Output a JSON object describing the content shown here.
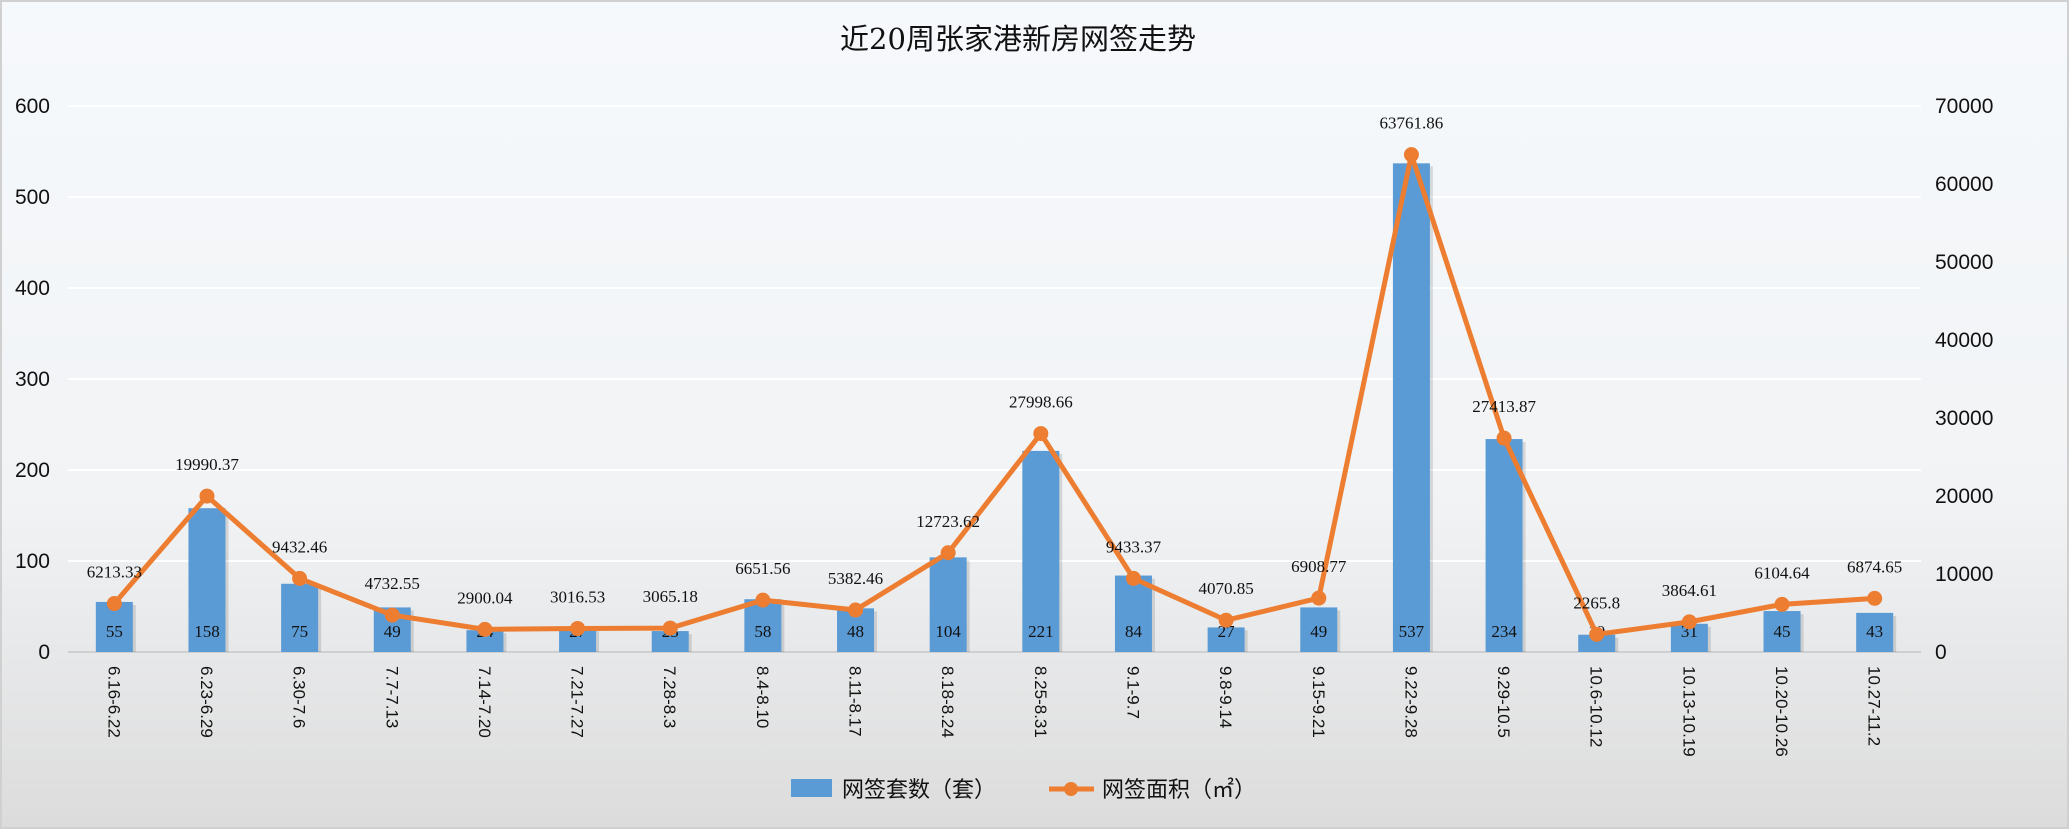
{
  "chart_data": {
    "type": "bar+line",
    "title": "近20周张家港新房网签走势",
    "categories": [
      "6.16-6.22",
      "6.23-6.29",
      "6.30-7.6",
      "7.7-7.13",
      "7.14-7.20",
      "7.21-7.27",
      "7.28-8.3",
      "8.4-8.10",
      "8.11-8.17",
      "8.18-8.24",
      "8.25-8.31",
      "9.1-9.7",
      "9.8-9.14",
      "9.15-9.21",
      "9.22-9.28",
      "9.29-10.5",
      "10.6-10.12",
      "10.13-10.19",
      "10.20-10.26",
      "10.27-11.2"
    ],
    "series": [
      {
        "name": "网签套数（套）",
        "type": "bar",
        "axis": "left",
        "color": "#5b9bd5",
        "values": [
          55,
          158,
          75,
          49,
          24,
          27,
          23,
          58,
          48,
          104,
          221,
          84,
          27,
          49,
          537,
          234,
          19,
          31,
          45,
          43
        ]
      },
      {
        "name": "网签面积（㎡）",
        "type": "line",
        "axis": "right",
        "color": "#ed7d31",
        "values": [
          6213.33,
          19990.37,
          9432.46,
          4732.55,
          2900.04,
          3016.53,
          3065.18,
          6651.56,
          5382.46,
          12723.62,
          27998.66,
          9433.37,
          4070.85,
          6908.77,
          63761.86,
          27413.87,
          2265.8,
          3864.61,
          6104.64,
          6874.65
        ]
      }
    ],
    "y_left": {
      "range": [
        0,
        600
      ],
      "ticks": [
        "0",
        "100",
        "200",
        "300",
        "400",
        "500",
        "600"
      ]
    },
    "y_right": {
      "range": [
        0,
        70000
      ],
      "ticks": [
        "0",
        "10000",
        "20000",
        "30000",
        "40000",
        "50000",
        "60000",
        "70000"
      ]
    },
    "grid": true,
    "legend": "bottom"
  }
}
